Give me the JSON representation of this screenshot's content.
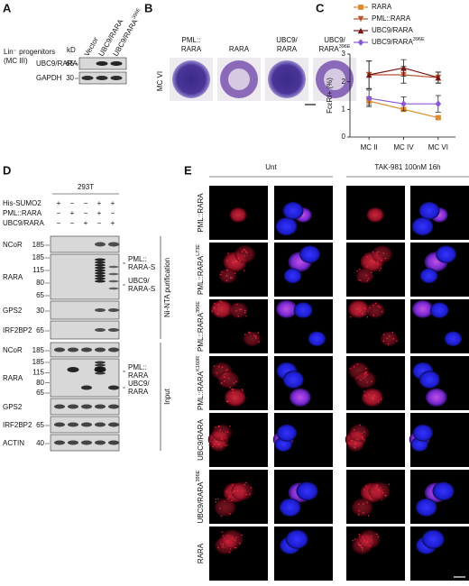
{
  "panels": {
    "A": {
      "letter": "A",
      "title_lines": [
        "Lin⁻ progenitors",
        "(MC III)"
      ],
      "lanes": [
        {
          "text": "Vector"
        },
        {
          "text": "UBC9/RARA"
        },
        {
          "text": "UBC9/RARA",
          "sup": "396E"
        }
      ],
      "kd_label": "kD",
      "blots": [
        {
          "name": "UBC9/RARA",
          "kd": 65
        },
        {
          "name": "GAPDH",
          "kd": 30
        }
      ]
    },
    "B": {
      "letter": "B",
      "row_label": "MC VI",
      "cells": [
        {
          "lines": [
            "PML::",
            "RARA"
          ]
        },
        {
          "lines": [
            "RARA"
          ]
        },
        {
          "lines": [
            "UBC9/",
            "RARA"
          ]
        },
        {
          "lines": [
            "UBC9/",
            "RARA"
          ],
          "sup": "396E"
        }
      ]
    },
    "D": {
      "letter": "D",
      "cell_line": "293T",
      "conditions": [
        {
          "name": "His-SUMO2",
          "signs": [
            "+",
            "−",
            "−",
            "+",
            "+"
          ]
        },
        {
          "name": "PML::RARA",
          "signs": [
            "−",
            "+",
            "−",
            "+",
            "−"
          ]
        },
        {
          "name": "UBC9/RARA",
          "signs": [
            "−",
            "−",
            "+",
            "−",
            "+"
          ]
        }
      ],
      "pulldown": {
        "section": "Ni-NTA purification",
        "blots": [
          {
            "name": "NCoR",
            "kd": [
              185
            ]
          },
          {
            "name": "RARA",
            "kd": [
              185,
              115,
              80,
              65
            ]
          },
          {
            "name": "GPS2",
            "kd": [
              30
            ]
          },
          {
            "name": "IRF2BP2",
            "kd": [
              65
            ]
          }
        ],
        "annotations": [
          {
            "lines": [
              "PML::",
              "RARA-S"
            ]
          },
          {
            "lines": [
              "UBC9/",
              "RARA-S"
            ]
          }
        ]
      },
      "input": {
        "section": "Input",
        "blots": [
          {
            "name": "NCoR",
            "kd": [
              185
            ]
          },
          {
            "name": "RARA",
            "kd": [
              185,
              115,
              80,
              65
            ]
          },
          {
            "name": "GPS2",
            "kd": []
          },
          {
            "name": "IRF2BP2",
            "kd": [
              65
            ]
          },
          {
            "name": "ACTIN",
            "kd": [
              40
            ]
          }
        ],
        "annotations": [
          {
            "lines": [
              "PML::",
              "RARA"
            ]
          },
          {
            "lines": [
              "UBC9/",
              "RARA"
            ]
          }
        ]
      }
    },
    "E": {
      "letter": "E",
      "conditions": [
        "Unt",
        "TAK-981 100nM 16h"
      ],
      "rows": [
        {
          "text": "PML::RARA"
        },
        {
          "text": "PML::RARA",
          "sup": "L73E"
        },
        {
          "text": "PML::RARA",
          "sup": "396E"
        },
        {
          "text": "PML::RARA",
          "sup": "K160R"
        },
        {
          "text": "UBC9/RARA"
        },
        {
          "text": "UBC9/RARA",
          "sup": "396E"
        },
        {
          "text": "RARA"
        }
      ]
    }
  },
  "chart_data": {
    "type": "line",
    "panel_letter": "C",
    "ylabel": "FcεRI+ (%)",
    "categories": [
      "MC II",
      "MC IV",
      "MC VI"
    ],
    "ylim": [
      0,
      3
    ],
    "yticks": [
      0,
      1,
      2,
      3
    ],
    "series": [
      {
        "name": "RARA",
        "color": "#e08a2c",
        "marker": "square",
        "values": [
          1.3,
          1.0,
          0.7
        ],
        "errors": [
          0.15,
          0.05,
          0.05
        ]
      },
      {
        "name": "PML::RARA",
        "color": "#b8552f",
        "marker": "triangle-down",
        "values": [
          2.25,
          2.25,
          2.15
        ],
        "errors": [
          0.5,
          0.3,
          0.2
        ]
      },
      {
        "name": "UBC9/RARA",
        "color": "#7a1515",
        "marker": "triangle-up",
        "values": [
          2.25,
          2.5,
          2.15
        ],
        "errors": [
          0.5,
          0.3,
          0.2
        ]
      },
      {
        "name": "UBC9/RARA",
        "name_sup": "396E",
        "color": "#8a5ad8",
        "marker": "diamond",
        "values": [
          1.4,
          1.2,
          1.2
        ],
        "errors": [
          0.3,
          0.25,
          0.3
        ]
      }
    ]
  }
}
